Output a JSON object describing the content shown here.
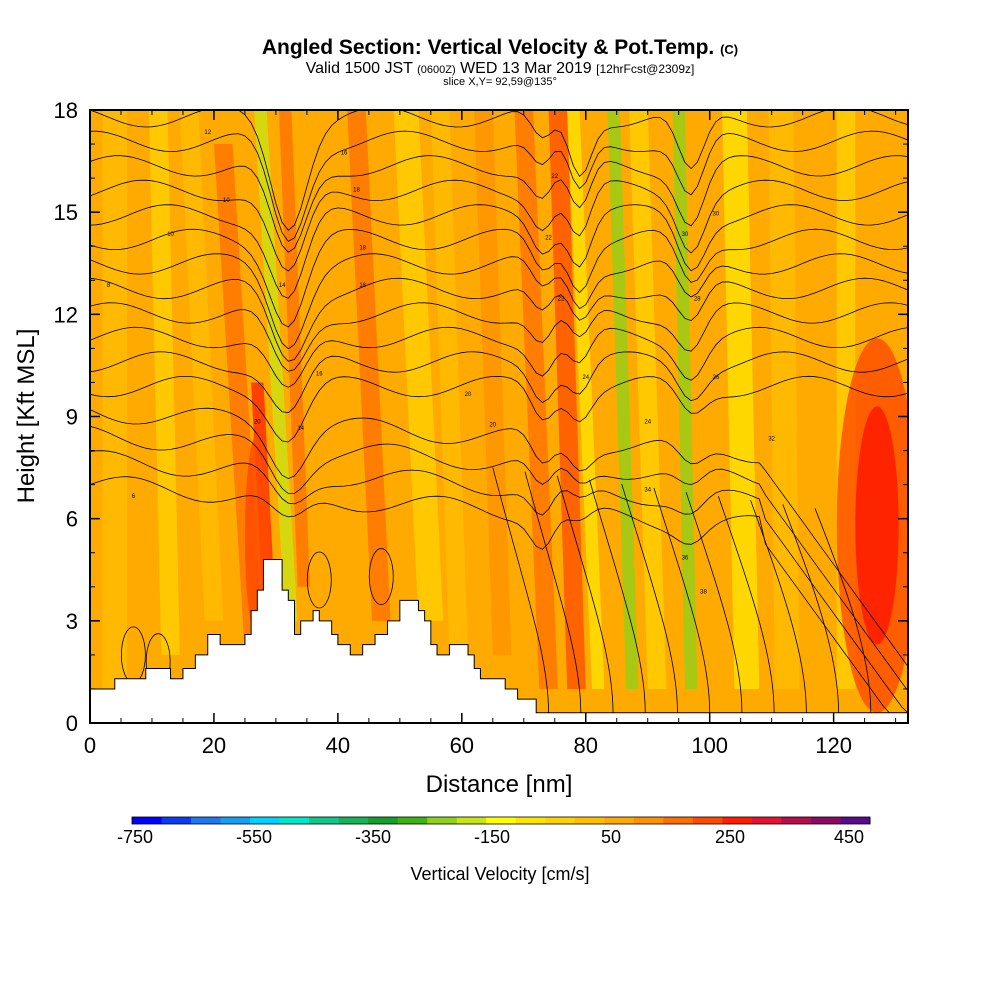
{
  "header": {
    "title": "Angled Section: Vertical Velocity & Pot.Temp.",
    "title_unit": "(C)",
    "valid_prefix": "Valid 1500 JST",
    "valid_utc": "(0600Z)",
    "valid_date": "WED 13 Mar 2019",
    "forecast": "[12hrFcst@2309z]",
    "slice": "slice X,Y= 92,59@135°"
  },
  "chart_data": {
    "type": "heatmap",
    "xlabel": "Distance [nm]",
    "ylabel": "Height [Kft MSL]",
    "xlim": [
      0,
      132
    ],
    "ylim": [
      0,
      18
    ],
    "xticks": [
      "0",
      "20",
      "40",
      "60",
      "80",
      "100",
      "120"
    ],
    "yticks": [
      "0",
      "3",
      "6",
      "9",
      "12",
      "15",
      "18"
    ],
    "colorbar": {
      "label": "Vertical Velocity [cm/s]",
      "tick_labels": [
        "-750",
        "-550",
        "-350",
        "-150",
        "50",
        "250",
        "450"
      ],
      "colors": [
        "#0000ff",
        "#0a3cf5",
        "#1e78f0",
        "#14a0f5",
        "#00d2ff",
        "#00e6c8",
        "#10c88a",
        "#14b45a",
        "#14a02a",
        "#3cb414",
        "#8cd219",
        "#c8e614",
        "#ffff00",
        "#ffe600",
        "#ffd200",
        "#ffbe00",
        "#ffaa00",
        "#ff9100",
        "#ff6e00",
        "#ff4b00",
        "#ff1e00",
        "#e61432",
        "#b40f4b",
        "#8c0a64",
        "#5a0a8c"
      ]
    },
    "contour_labels": [
      "6",
      "8",
      "10",
      "10",
      "12",
      "14",
      "14",
      "16",
      "16",
      "18",
      "18",
      "18",
      "20",
      "20",
      "20",
      "22",
      "22",
      "22",
      "24",
      "24",
      "26",
      "28",
      "30",
      "30",
      "32",
      "34",
      "36",
      "38"
    ],
    "terrain_kft": [
      [
        0,
        1.0
      ],
      [
        4,
        1.3
      ],
      [
        9,
        1.6
      ],
      [
        13,
        1.3
      ],
      [
        15,
        1.6
      ],
      [
        17,
        2.0
      ],
      [
        19,
        2.6
      ],
      [
        21,
        2.3
      ],
      [
        25,
        2.6
      ],
      [
        26,
        3.3
      ],
      [
        27,
        3.9
      ],
      [
        28,
        4.8
      ],
      [
        31,
        3.9
      ],
      [
        32,
        3.6
      ],
      [
        33,
        2.6
      ],
      [
        34,
        3.0
      ],
      [
        36,
        3.3
      ],
      [
        37,
        3.0
      ],
      [
        39,
        2.6
      ],
      [
        40,
        2.3
      ],
      [
        42,
        2.0
      ],
      [
        44,
        2.3
      ],
      [
        46,
        2.6
      ],
      [
        48,
        3.0
      ],
      [
        50,
        3.6
      ],
      [
        53,
        3.3
      ],
      [
        54,
        3.0
      ],
      [
        55,
        2.3
      ],
      [
        56,
        2.0
      ],
      [
        58,
        2.3
      ],
      [
        61,
        2.0
      ],
      [
        62,
        1.6
      ],
      [
        63,
        1.3
      ],
      [
        67,
        1.0
      ],
      [
        69,
        0.7
      ],
      [
        72,
        0.3
      ],
      [
        132,
        0.3
      ]
    ]
  }
}
